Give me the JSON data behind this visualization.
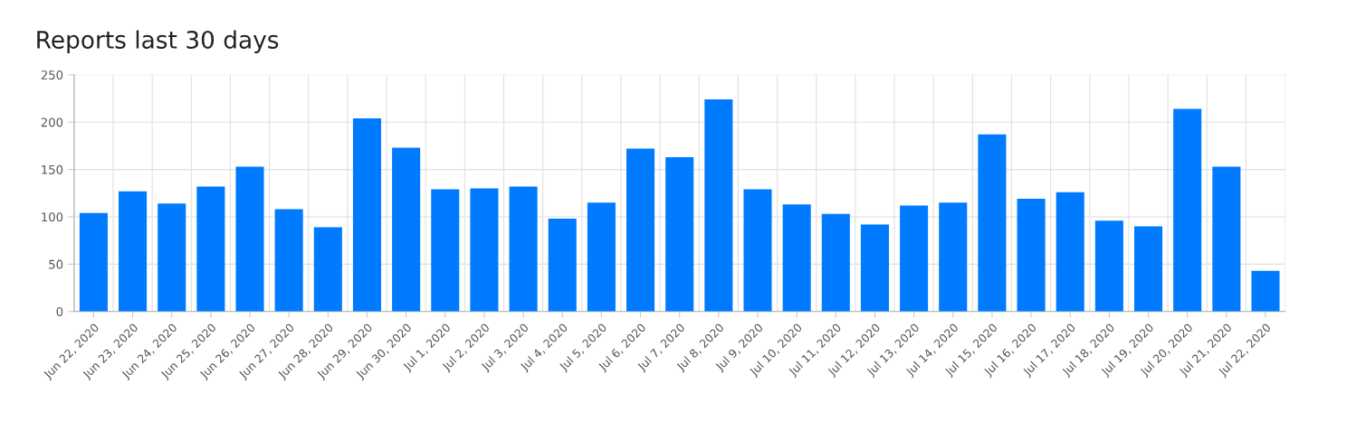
{
  "chart_data": {
    "type": "bar",
    "title": "Reports last 30 days",
    "categories": [
      "Jun 22, 2020",
      "Jun 23, 2020",
      "Jun 24, 2020",
      "Jun 25, 2020",
      "Jun 26, 2020",
      "Jun 27, 2020",
      "Jun 28, 2020",
      "Jun 29, 2020",
      "Jun 30, 2020",
      "Jul 1, 2020",
      "Jul 2, 2020",
      "Jul 3, 2020",
      "Jul 4, 2020",
      "Jul 5, 2020",
      "Jul 6, 2020",
      "Jul 7, 2020",
      "Jul 8, 2020",
      "Jul 9, 2020",
      "Jul 10, 2020",
      "Jul 11, 2020",
      "Jul 12, 2020",
      "Jul 13, 2020",
      "Jul 14, 2020",
      "Jul 15, 2020",
      "Jul 16, 2020",
      "Jul 17, 2020",
      "Jul 18, 2020",
      "Jul 19, 2020",
      "Jul 20, 2020",
      "Jul 21, 2020",
      "Jul 22, 2020"
    ],
    "values": [
      104,
      127,
      114,
      132,
      153,
      108,
      89,
      204,
      173,
      129,
      130,
      132,
      98,
      115,
      172,
      163,
      224,
      129,
      113,
      103,
      92,
      112,
      115,
      187,
      119,
      126,
      96,
      90,
      214,
      153,
      43
    ],
    "color": "#007bff",
    "ylim": [
      0,
      250
    ],
    "yticks": [
      0,
      50,
      100,
      150,
      200,
      250
    ],
    "grid": true
  }
}
